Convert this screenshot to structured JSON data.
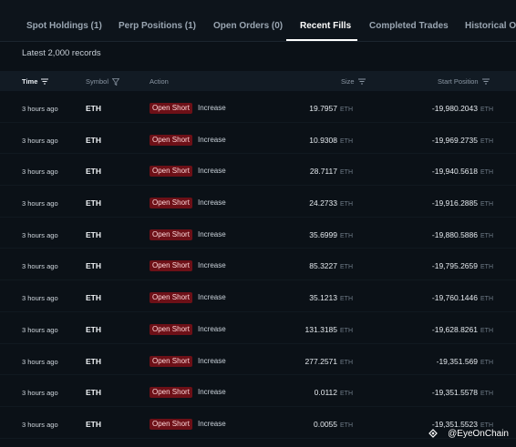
{
  "tabs": [
    {
      "label": "Spot Holdings (1)",
      "active": false
    },
    {
      "label": "Perp Positions (1)",
      "active": false
    },
    {
      "label": "Open Orders (0)",
      "active": false
    },
    {
      "label": "Recent Fills",
      "active": true
    },
    {
      "label": "Completed Trades",
      "active": false
    },
    {
      "label": "Historical Orde",
      "active": false
    }
  ],
  "records_label": "Latest 2,000 records",
  "columns": {
    "time": "Time",
    "symbol": "Symbol",
    "action": "Action",
    "size": "Size",
    "start_position": "Start Position"
  },
  "rows": [
    {
      "time": "3 hours ago",
      "symbol": "ETH",
      "action": "Open Short",
      "action_kind": "Increase",
      "size": "19.7957",
      "size_unit": "ETH",
      "start_position": "-19,980.2043",
      "start_unit": "ETH"
    },
    {
      "time": "3 hours ago",
      "symbol": "ETH",
      "action": "Open Short",
      "action_kind": "Increase",
      "size": "10.9308",
      "size_unit": "ETH",
      "start_position": "-19,969.2735",
      "start_unit": "ETH"
    },
    {
      "time": "3 hours ago",
      "symbol": "ETH",
      "action": "Open Short",
      "action_kind": "Increase",
      "size": "28.7117",
      "size_unit": "ETH",
      "start_position": "-19,940.5618",
      "start_unit": "ETH"
    },
    {
      "time": "3 hours ago",
      "symbol": "ETH",
      "action": "Open Short",
      "action_kind": "Increase",
      "size": "24.2733",
      "size_unit": "ETH",
      "start_position": "-19,916.2885",
      "start_unit": "ETH"
    },
    {
      "time": "3 hours ago",
      "symbol": "ETH",
      "action": "Open Short",
      "action_kind": "Increase",
      "size": "35.6999",
      "size_unit": "ETH",
      "start_position": "-19,880.5886",
      "start_unit": "ETH"
    },
    {
      "time": "3 hours ago",
      "symbol": "ETH",
      "action": "Open Short",
      "action_kind": "Increase",
      "size": "85.3227",
      "size_unit": "ETH",
      "start_position": "-19,795.2659",
      "start_unit": "ETH"
    },
    {
      "time": "3 hours ago",
      "symbol": "ETH",
      "action": "Open Short",
      "action_kind": "Increase",
      "size": "35.1213",
      "size_unit": "ETH",
      "start_position": "-19,760.1446",
      "start_unit": "ETH"
    },
    {
      "time": "3 hours ago",
      "symbol": "ETH",
      "action": "Open Short",
      "action_kind": "Increase",
      "size": "131.3185",
      "size_unit": "ETH",
      "start_position": "-19,628.8261",
      "start_unit": "ETH"
    },
    {
      "time": "3 hours ago",
      "symbol": "ETH",
      "action": "Open Short",
      "action_kind": "Increase",
      "size": "277.2571",
      "size_unit": "ETH",
      "start_position": "-19,351.569",
      "start_unit": "ETH"
    },
    {
      "time": "3 hours ago",
      "symbol": "ETH",
      "action": "Open Short",
      "action_kind": "Increase",
      "size": "0.0112",
      "size_unit": "ETH",
      "start_position": "-19,351.5578",
      "start_unit": "ETH"
    },
    {
      "time": "3 hours ago",
      "symbol": "ETH",
      "action": "Open Short",
      "action_kind": "Increase",
      "size": "0.0055",
      "size_unit": "ETH",
      "start_position": "-19,351.5523",
      "start_unit": "ETH"
    }
  ],
  "watermark": "@EyeOnChain",
  "icons": {
    "time_sort": "sort-lines-icon",
    "symbol_filter": "filter-funnel-icon",
    "size_sort": "sort-lines-icon",
    "start_sort": "sort-lines-icon",
    "watermark": "eye-logo-icon"
  },
  "colors": {
    "background": "#0b1117",
    "badge_bg": "#6d1017",
    "badge_text": "#ffd7d9",
    "active_tab": "#ffffff",
    "inactive_tab": "#9aa6b2"
  }
}
